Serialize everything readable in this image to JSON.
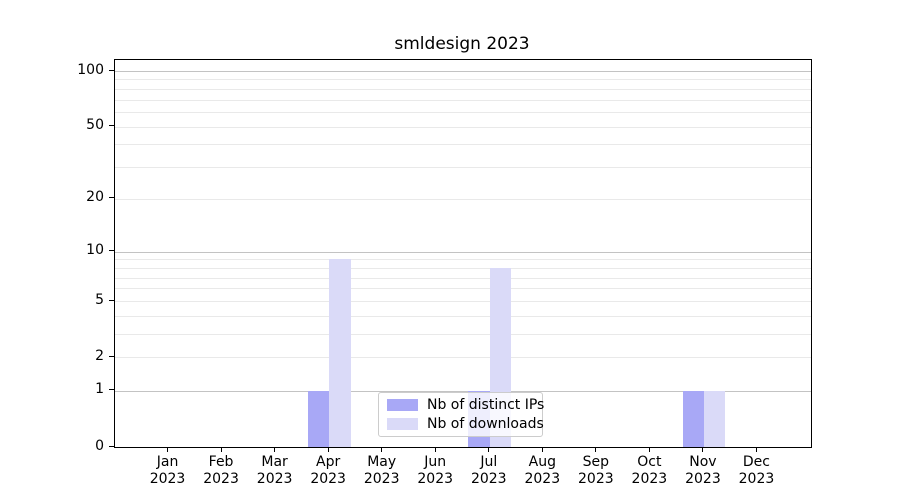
{
  "chart_data": {
    "type": "bar",
    "title": "smldesign 2023",
    "categories": [
      "Jan 2023",
      "Feb 2023",
      "Mar 2023",
      "Apr 2023",
      "May 2023",
      "Jun 2023",
      "Jul 2023",
      "Aug 2023",
      "Sep 2023",
      "Oct 2023",
      "Nov 2023",
      "Dec 2023"
    ],
    "series": [
      {
        "name": "Nb of distinct IPs",
        "color": "#a8a8f6",
        "values": [
          0,
          0,
          0,
          1,
          0,
          0,
          1,
          0,
          0,
          0,
          1,
          0
        ]
      },
      {
        "name": "Nb of downloads",
        "color": "#dadaf8",
        "values": [
          0,
          0,
          0,
          9,
          0,
          0,
          8,
          0,
          0,
          0,
          1,
          0
        ]
      }
    ],
    "xlabel": "",
    "ylabel": "",
    "yscale": "log1p",
    "ylim": [
      0,
      114
    ],
    "yticks": [
      0,
      1,
      2,
      5,
      10,
      20,
      50,
      100
    ],
    "grid": {
      "major_values": [
        1,
        10,
        100
      ],
      "minor_values": [
        2,
        3,
        4,
        5,
        6,
        7,
        8,
        9,
        20,
        30,
        40,
        50,
        60,
        70,
        80,
        90
      ]
    },
    "legend_position": "inside lower-center",
    "style": {
      "background": "#ffffff",
      "spine_color": "#000000",
      "text_color": "#000000",
      "major_grid_color": "#c3c3c3",
      "minor_grid_color": "#e9e9e9",
      "legend_border_color": "#cccccc",
      "legend_background": "rgba(255,255,255,0.8)"
    }
  }
}
